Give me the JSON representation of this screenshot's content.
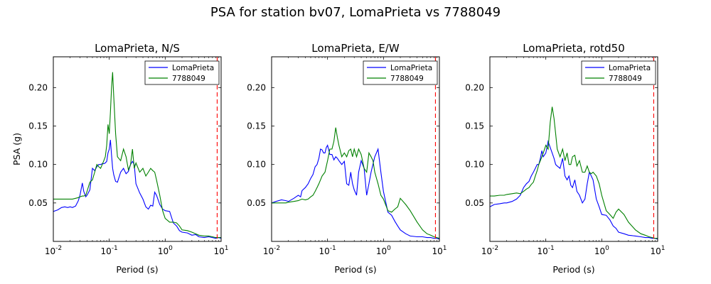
{
  "figure": {
    "suptitle": "PSA for station bv07, LomaPrieta vs 7788049"
  },
  "chart_data": [
    {
      "type": "line",
      "title": "LomaPrieta, N/S",
      "xlabel": "Period (s)",
      "ylabel": "PSA (g)",
      "xscale": "log",
      "xlim": [
        0.01,
        10
      ],
      "ylim": [
        0.0,
        0.24
      ],
      "xticks": [
        0.01,
        0.1,
        1,
        10
      ],
      "xtick_exponents": [
        "-2",
        "-1",
        "0",
        "1"
      ],
      "yticks": [
        0.05,
        0.1,
        0.15,
        0.2
      ],
      "ytick_labels": [
        "0.05",
        "0.10",
        "0.15",
        "0.20"
      ],
      "legend_loc": "upper right",
      "vline": {
        "x": 8.5,
        "color": "#ff0000",
        "style": "dashed"
      },
      "series": [
        {
          "name": "LomaPrieta",
          "color": "#0000ff",
          "x": [
            0.01,
            0.012,
            0.014,
            0.016,
            0.018,
            0.02,
            0.022,
            0.025,
            0.028,
            0.03,
            0.033,
            0.035,
            0.038,
            0.04,
            0.045,
            0.05,
            0.055,
            0.06,
            0.065,
            0.07,
            0.075,
            0.08,
            0.085,
            0.09,
            0.095,
            0.1,
            0.105,
            0.11,
            0.115,
            0.12,
            0.13,
            0.14,
            0.16,
            0.18,
            0.2,
            0.22,
            0.24,
            0.26,
            0.28,
            0.3,
            0.35,
            0.4,
            0.45,
            0.5,
            0.55,
            0.6,
            0.65,
            0.7,
            0.8,
            0.9,
            1.0,
            1.2,
            1.4,
            1.6,
            1.8,
            2.0,
            2.5,
            3.0,
            3.5,
            4.0,
            5.0,
            6.0,
            7.0,
            8.0,
            9.0,
            10.0
          ],
          "y": [
            0.039,
            0.041,
            0.044,
            0.045,
            0.044,
            0.045,
            0.044,
            0.046,
            0.053,
            0.06,
            0.076,
            0.065,
            0.058,
            0.06,
            0.067,
            0.095,
            0.092,
            0.097,
            0.1,
            0.1,
            0.101,
            0.101,
            0.102,
            0.104,
            0.115,
            0.12,
            0.132,
            0.112,
            0.095,
            0.087,
            0.078,
            0.077,
            0.09,
            0.095,
            0.088,
            0.091,
            0.1,
            0.104,
            0.1,
            0.075,
            0.063,
            0.055,
            0.045,
            0.042,
            0.047,
            0.046,
            0.064,
            0.06,
            0.048,
            0.042,
            0.04,
            0.039,
            0.024,
            0.02,
            0.014,
            0.012,
            0.011,
            0.008,
            0.009,
            0.006,
            0.005,
            0.006,
            0.005,
            0.004,
            0.005,
            0.004
          ]
        },
        {
          "name": "7788049",
          "color": "#008000",
          "x": [
            0.01,
            0.012,
            0.014,
            0.016,
            0.018,
            0.02,
            0.022,
            0.025,
            0.028,
            0.03,
            0.033,
            0.035,
            0.038,
            0.04,
            0.045,
            0.05,
            0.055,
            0.06,
            0.065,
            0.07,
            0.075,
            0.08,
            0.085,
            0.09,
            0.095,
            0.1,
            0.105,
            0.11,
            0.115,
            0.12,
            0.13,
            0.14,
            0.16,
            0.18,
            0.2,
            0.22,
            0.24,
            0.26,
            0.28,
            0.3,
            0.35,
            0.4,
            0.45,
            0.5,
            0.55,
            0.6,
            0.65,
            0.7,
            0.8,
            0.9,
            1.0,
            1.2,
            1.4,
            1.6,
            1.8,
            2.0,
            2.5,
            3.0,
            3.5,
            4.0,
            5.0,
            6.0,
            7.0,
            8.0,
            9.0,
            10.0
          ],
          "y": [
            0.055,
            0.055,
            0.055,
            0.055,
            0.055,
            0.055,
            0.055,
            0.056,
            0.057,
            0.058,
            0.059,
            0.059,
            0.06,
            0.065,
            0.077,
            0.08,
            0.09,
            0.1,
            0.097,
            0.095,
            0.1,
            0.105,
            0.11,
            0.125,
            0.152,
            0.14,
            0.168,
            0.2,
            0.22,
            0.19,
            0.14,
            0.11,
            0.105,
            0.12,
            0.11,
            0.093,
            0.1,
            0.12,
            0.095,
            0.102,
            0.09,
            0.095,
            0.085,
            0.09,
            0.095,
            0.092,
            0.09,
            0.08,
            0.06,
            0.04,
            0.03,
            0.025,
            0.025,
            0.024,
            0.02,
            0.015,
            0.014,
            0.012,
            0.01,
            0.008,
            0.007,
            0.007,
            0.006,
            0.005,
            0.005,
            0.005
          ]
        }
      ]
    },
    {
      "type": "line",
      "title": "LomaPrieta, E/W",
      "xlabel": "Period (s)",
      "ylabel": "",
      "xscale": "log",
      "xlim": [
        0.01,
        10
      ],
      "ylim": [
        0.0,
        0.24
      ],
      "xticks": [
        0.01,
        0.1,
        1,
        10
      ],
      "xtick_exponents": [
        "-2",
        "-1",
        "0",
        "1"
      ],
      "yticks": [
        0.05,
        0.1,
        0.15,
        0.2
      ],
      "ytick_labels": [
        "0.05",
        "0.10",
        "0.15",
        "0.20"
      ],
      "legend_loc": "upper right",
      "vline": {
        "x": 8.5,
        "color": "#ff0000",
        "style": "dashed"
      },
      "series": [
        {
          "name": "LomaPrieta",
          "color": "#0000ff",
          "x": [
            0.01,
            0.012,
            0.015,
            0.018,
            0.02,
            0.025,
            0.03,
            0.033,
            0.035,
            0.04,
            0.045,
            0.05,
            0.055,
            0.06,
            0.065,
            0.07,
            0.075,
            0.08,
            0.085,
            0.09,
            0.095,
            0.1,
            0.11,
            0.12,
            0.13,
            0.14,
            0.15,
            0.16,
            0.18,
            0.2,
            0.22,
            0.24,
            0.26,
            0.28,
            0.3,
            0.33,
            0.36,
            0.4,
            0.45,
            0.5,
            0.55,
            0.6,
            0.7,
            0.8,
            0.9,
            1.0,
            1.2,
            1.4,
            1.6,
            1.8,
            2.0,
            2.5,
            3.0,
            4.0,
            5.0,
            6.0,
            7.0,
            8.0,
            9.0,
            10.0
          ],
          "y": [
            0.05,
            0.052,
            0.054,
            0.053,
            0.052,
            0.056,
            0.06,
            0.058,
            0.066,
            0.07,
            0.075,
            0.082,
            0.087,
            0.097,
            0.1,
            0.108,
            0.12,
            0.119,
            0.115,
            0.115,
            0.122,
            0.125,
            0.113,
            0.113,
            0.106,
            0.11,
            0.108,
            0.105,
            0.1,
            0.104,
            0.075,
            0.073,
            0.09,
            0.075,
            0.067,
            0.06,
            0.09,
            0.105,
            0.095,
            0.06,
            0.075,
            0.09,
            0.11,
            0.12,
            0.09,
            0.065,
            0.038,
            0.034,
            0.026,
            0.02,
            0.015,
            0.01,
            0.007,
            0.006,
            0.006,
            0.005,
            0.005,
            0.004,
            0.004,
            0.003
          ]
        },
        {
          "name": "7788049",
          "color": "#008000",
          "x": [
            0.01,
            0.012,
            0.015,
            0.018,
            0.02,
            0.025,
            0.03,
            0.035,
            0.04,
            0.045,
            0.05,
            0.055,
            0.06,
            0.065,
            0.07,
            0.075,
            0.08,
            0.09,
            0.1,
            0.11,
            0.12,
            0.13,
            0.14,
            0.15,
            0.16,
            0.18,
            0.2,
            0.22,
            0.24,
            0.26,
            0.28,
            0.3,
            0.33,
            0.36,
            0.4,
            0.45,
            0.5,
            0.55,
            0.6,
            0.65,
            0.7,
            0.8,
            0.9,
            1.0,
            1.2,
            1.4,
            1.6,
            1.8,
            2.0,
            2.5,
            3.0,
            4.0,
            5.0,
            6.0,
            7.0,
            8.0,
            9.0,
            10.0
          ],
          "y": [
            0.05,
            0.05,
            0.05,
            0.05,
            0.051,
            0.052,
            0.053,
            0.055,
            0.054,
            0.055,
            0.058,
            0.06,
            0.065,
            0.07,
            0.075,
            0.08,
            0.085,
            0.09,
            0.105,
            0.12,
            0.12,
            0.13,
            0.148,
            0.135,
            0.125,
            0.11,
            0.115,
            0.11,
            0.118,
            0.12,
            0.11,
            0.12,
            0.11,
            0.12,
            0.113,
            0.095,
            0.09,
            0.115,
            0.11,
            0.105,
            0.09,
            0.075,
            0.06,
            0.055,
            0.04,
            0.038,
            0.042,
            0.045,
            0.056,
            0.048,
            0.04,
            0.025,
            0.015,
            0.01,
            0.008,
            0.006,
            0.005,
            0.004
          ]
        }
      ]
    },
    {
      "type": "line",
      "title": "LomaPrieta, rotd50",
      "xlabel": "Period (s)",
      "ylabel": "",
      "xscale": "log",
      "xlim": [
        0.01,
        10
      ],
      "ylim": [
        0.0,
        0.24
      ],
      "xticks": [
        0.01,
        0.1,
        1,
        10
      ],
      "xtick_exponents": [
        "-2",
        "-1",
        "0",
        "1"
      ],
      "yticks": [
        0.05,
        0.1,
        0.15,
        0.2
      ],
      "ytick_labels": [
        "0.05",
        "0.10",
        "0.15",
        "0.20"
      ],
      "legend_loc": "upper right",
      "vline": {
        "x": 8.5,
        "color": "#ff0000",
        "style": "dashed"
      },
      "series": [
        {
          "name": "LomaPrieta",
          "color": "#0000ff",
          "x": [
            0.01,
            0.012,
            0.015,
            0.018,
            0.02,
            0.025,
            0.03,
            0.035,
            0.04,
            0.045,
            0.05,
            0.055,
            0.06,
            0.065,
            0.07,
            0.075,
            0.08,
            0.085,
            0.09,
            0.1,
            0.11,
            0.12,
            0.13,
            0.14,
            0.15,
            0.16,
            0.18,
            0.2,
            0.22,
            0.24,
            0.26,
            0.28,
            0.3,
            0.33,
            0.36,
            0.4,
            0.45,
            0.5,
            0.55,
            0.6,
            0.65,
            0.7,
            0.8,
            0.9,
            1.0,
            1.2,
            1.4,
            1.6,
            1.8,
            2.0,
            2.5,
            3.0,
            4.0,
            5.0,
            6.0,
            7.0,
            8.0,
            9.0,
            10.0
          ],
          "y": [
            0.045,
            0.048,
            0.049,
            0.05,
            0.05,
            0.052,
            0.055,
            0.06,
            0.07,
            0.075,
            0.078,
            0.085,
            0.09,
            0.095,
            0.1,
            0.1,
            0.108,
            0.118,
            0.11,
            0.115,
            0.13,
            0.122,
            0.115,
            0.108,
            0.1,
            0.098,
            0.095,
            0.108,
            0.085,
            0.08,
            0.085,
            0.073,
            0.07,
            0.08,
            0.065,
            0.06,
            0.05,
            0.055,
            0.075,
            0.09,
            0.085,
            0.08,
            0.055,
            0.045,
            0.035,
            0.034,
            0.028,
            0.02,
            0.017,
            0.012,
            0.01,
            0.008,
            0.007,
            0.006,
            0.005,
            0.005,
            0.004,
            0.004,
            0.003
          ]
        },
        {
          "name": "7788049",
          "color": "#008000",
          "x": [
            0.01,
            0.012,
            0.015,
            0.018,
            0.02,
            0.025,
            0.03,
            0.035,
            0.04,
            0.045,
            0.05,
            0.055,
            0.06,
            0.065,
            0.07,
            0.075,
            0.08,
            0.09,
            0.1,
            0.11,
            0.12,
            0.13,
            0.14,
            0.15,
            0.16,
            0.18,
            0.2,
            0.22,
            0.24,
            0.26,
            0.28,
            0.3,
            0.33,
            0.36,
            0.4,
            0.45,
            0.5,
            0.55,
            0.6,
            0.65,
            0.7,
            0.8,
            0.9,
            1.0,
            1.2,
            1.4,
            1.6,
            1.8,
            2.0,
            2.5,
            3.0,
            4.0,
            5.0,
            6.0,
            7.0,
            8.0,
            9.0,
            10.0
          ],
          "y": [
            0.059,
            0.059,
            0.06,
            0.06,
            0.061,
            0.062,
            0.063,
            0.062,
            0.065,
            0.068,
            0.07,
            0.074,
            0.077,
            0.085,
            0.092,
            0.1,
            0.105,
            0.115,
            0.125,
            0.12,
            0.155,
            0.175,
            0.16,
            0.14,
            0.12,
            0.11,
            0.12,
            0.105,
            0.115,
            0.1,
            0.1,
            0.11,
            0.112,
            0.098,
            0.105,
            0.09,
            0.09,
            0.098,
            0.09,
            0.088,
            0.09,
            0.085,
            0.075,
            0.06,
            0.04,
            0.035,
            0.03,
            0.038,
            0.042,
            0.035,
            0.025,
            0.015,
            0.01,
            0.008,
            0.006,
            0.005,
            0.004,
            0.004
          ]
        }
      ]
    }
  ]
}
